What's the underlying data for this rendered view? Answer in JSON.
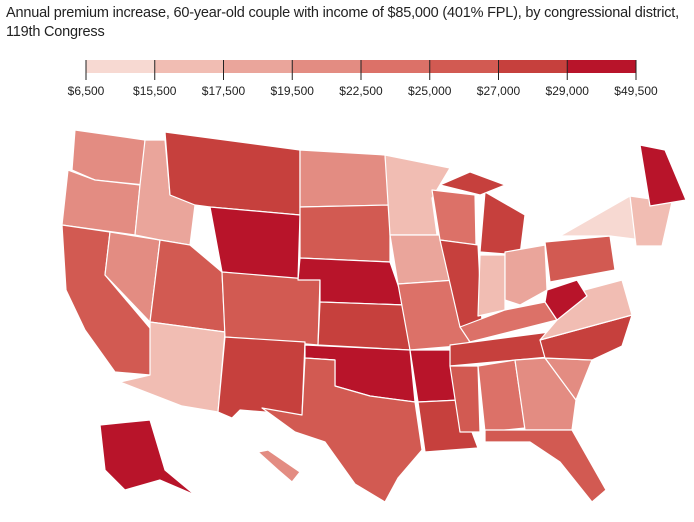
{
  "title": "Annual premium increase, 60-year-old couple with income of $85,000 (401% FPL), by congressional district, 119th Congress",
  "legend": {
    "breaks": [
      "$6,500",
      "$15,500",
      "$17,500",
      "$19,500",
      "$22,500",
      "$25,000",
      "$27,000",
      "$29,000",
      "$49,500"
    ],
    "colors": [
      "#f7d9d2",
      "#f1bdb3",
      "#eaa59b",
      "#e38c82",
      "#dc7168",
      "#d25a52",
      "#c6403d",
      "#b8142a"
    ]
  },
  "chart_data": {
    "type": "choropleth",
    "title": "Annual premium increase, 60-year-old couple with income of $85,000 (401% FPL), by congressional district, 119th Congress",
    "bins": [
      [
        6500,
        15500
      ],
      [
        15500,
        17500
      ],
      [
        17500,
        19500
      ],
      [
        19500,
        22500
      ],
      [
        22500,
        25000
      ],
      [
        25000,
        27000
      ],
      [
        27000,
        29000
      ],
      [
        29000,
        49500
      ]
    ],
    "state_bins_approx": {
      "WA": 3,
      "OR": 3,
      "CA": 5,
      "NV": 3,
      "ID": 2,
      "MT": 6,
      "WY": 7,
      "UT": 5,
      "AZ": 1,
      "CO": 5,
      "NM": 6,
      "ND": 3,
      "SD": 5,
      "NE": 7,
      "KS": 6,
      "OK": 7,
      "TX": 5,
      "MN": 1,
      "IA": 2,
      "MO": 4,
      "AR": 7,
      "LA": 6,
      "WI": 4,
      "IL": 6,
      "MI": 6,
      "IN": 1,
      "OH": 2,
      "KY": 4,
      "TN": 6,
      "MS": 5,
      "AL": 4,
      "GA": 3,
      "FL": 5,
      "SC": 3,
      "NC": 6,
      "VA": 1,
      "WV": 7,
      "PA": 5,
      "NY": 0,
      "NE_ENG": 1,
      "ME": 7,
      "AK": 7,
      "HI": 3
    }
  }
}
